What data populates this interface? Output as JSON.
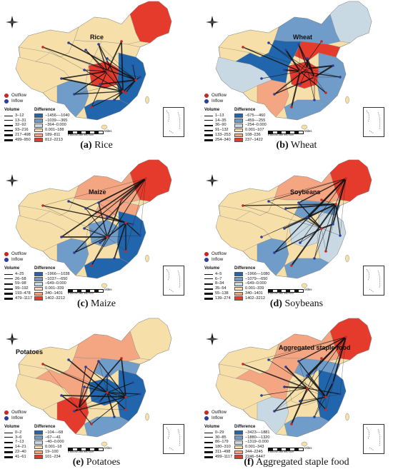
{
  "legend": {
    "outflow": "Outflow",
    "inflow": "Inflow",
    "volume_head": "Volume",
    "difference_head": "Difference",
    "scale_unit": "Miles",
    "scale_ticks": "0  65130  260  390  520"
  },
  "colors": {
    "outflow_dot": "#c62828",
    "inflow_dot": "#2a3f9d",
    "diff_classes": [
      "#2166ac",
      "#6f9cc8",
      "#c9d9e3",
      "#f6dfa8",
      "#f4a582",
      "#e53b2c"
    ]
  },
  "panels": [
    {
      "title": "Rice",
      "caption_letter": "(a)",
      "caption_text": " Rice",
      "volume": [
        "3–12",
        "13–31",
        "32–92",
        "93–216",
        "217–498",
        "499–950"
      ],
      "difference": [
        "−1456–−1040",
        "−1039–−365",
        "−364–0.000",
        "0.001–188",
        "189–811",
        "812–2213"
      ]
    },
    {
      "title": "Wheat",
      "caption_letter": "(b)",
      "caption_text": " Wheat",
      "volume": [
        "1–13",
        "14–35",
        "36–90",
        "91–132",
        "133–253",
        "254–340"
      ],
      "difference": [
        "−675–−460",
        "−459–−255",
        "−254–0.000",
        "0.001–107",
        "108–236",
        "237–1422"
      ]
    },
    {
      "title": "Maize",
      "caption_letter": "(c)",
      "caption_text": " Maize",
      "volume": [
        "4–25",
        "26–58",
        "59–98",
        "99–192",
        "193–478",
        "479–1117"
      ],
      "difference": [
        "−1966–−1038",
        "−1037–−650",
        "−649–0.000",
        "0.001–339",
        "340–1401",
        "1402–3212"
      ]
    },
    {
      "title": "Soybeans",
      "caption_letter": "(d)",
      "caption_text": " Soybeans",
      "volume": [
        "4–5",
        "6–7",
        "8–34",
        "35–54",
        "55–138",
        "139–274"
      ],
      "difference": [
        "−1966–−1080",
        "−1079–−650",
        "−649–0.000",
        "0.001–339",
        "340–1401",
        "1402–3212"
      ]
    },
    {
      "title": "Potatoes",
      "caption_letter": "(e)",
      "caption_text": " Potatoes",
      "volume": [
        "0–2",
        "3–6",
        "7–13",
        "14–21",
        "22–40",
        "41–61"
      ],
      "difference": [
        "−104–−68",
        "−67–−41",
        "−40–0.000",
        "0.001–18",
        "19–100",
        "101–234"
      ]
    },
    {
      "title": "Aggregated staple food",
      "caption_letter": "(f)",
      "caption_text": " Aggregated staple food",
      "volume": [
        "0–29",
        "30–85",
        "86–179",
        "180–310",
        "311–498",
        "499–1117"
      ],
      "difference": [
        "−3423–−1881",
        "−1880–−1320",
        "−1319–0.000",
        "0.001–343",
        "344–2245",
        "2246–5447"
      ]
    }
  ]
}
